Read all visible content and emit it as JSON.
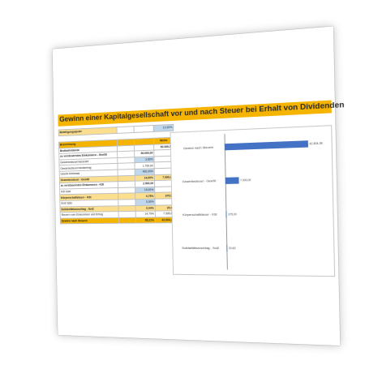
{
  "title": "Gewinn einer Kapitalgesellschaft vor und nach Steuer bei Erhalt von Dividenden",
  "quote": {
    "label": "Beteiligungsquote",
    "value": "12,00%"
  },
  "table": {
    "header": {
      "label": "Bezeichnung",
      "col3": "",
      "col4": "Werte"
    },
    "rows": [
      {
        "label": "Bruttodividende",
        "c3": "",
        "c4": "50.000,00",
        "style": "bold"
      },
      {
        "label": "zu versteuerndes Einkommen - GewSt",
        "c3": "50.000,00",
        "c4": "",
        "style": "bold"
      },
      {
        "label": "Gewerbesteuermesszahl",
        "c3": "3,50%",
        "c4": "",
        "style": "blue"
      },
      {
        "label": "Gewerbesteuermessbetrag",
        "c3": "1.750,00",
        "c4": "",
        "style": ""
      },
      {
        "label": "GewSt-Hebesatz",
        "c3": "400,00%",
        "c4": "",
        "style": "blue"
      },
      {
        "label": "Gewerbesteuer - GewSt",
        "c3": "14,00%",
        "c4": "7.000,00",
        "style": "ly"
      },
      {
        "label": "zu versteuerndes Einkommen - KSt",
        "c3": "2.500,00",
        "c4": "",
        "style": "bold"
      },
      {
        "label": "KSt-Satz",
        "c3": "15,00%",
        "c4": "",
        "style": "blue"
      },
      {
        "label": "Körperschaftsteuer - KSt",
        "c3": "0,75%",
        "c4": "375,00",
        "style": "ly"
      },
      {
        "label": "SolZ-Satz",
        "c3": "5,50%",
        "c4": "",
        "style": "blue"
      },
      {
        "label": "Solidaritätszuschlag - SolZ",
        "c3": "0,04%",
        "c4": "20,63",
        "style": "ly"
      },
      {
        "label": "Steuern vom Einkommen und Ertrag",
        "c3": "14,79%",
        "c4": "7.395,63",
        "style": ""
      },
      {
        "label": "Gewinn nach Steuern",
        "c3": "85,21%",
        "c4": "42.604,38",
        "style": "yellow"
      }
    ]
  },
  "chart_data": {
    "type": "bar",
    "orientation": "horizontal",
    "categories": [
      "Gewinn nach Steuern",
      "Gewerbesteuer - GewSt",
      "Körperschaftsteuer - KSt",
      "Solidaritätszuschlag - SolZ"
    ],
    "values": [
      42604.38,
      7000,
      375,
      20.63
    ],
    "labels": [
      "42.604,38",
      "7.000,00",
      "375,00",
      "20,63"
    ],
    "xlim": [
      0,
      50000
    ],
    "color": "#4472c4"
  },
  "colors": {
    "accent": "#f5b400",
    "light_accent": "#fbdf8f",
    "input_blue": "#bfd8ee",
    "bar": "#4472c4"
  }
}
